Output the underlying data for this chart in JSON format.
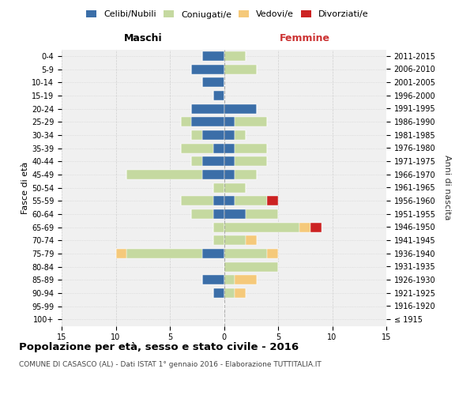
{
  "age_groups": [
    "100+",
    "95-99",
    "90-94",
    "85-89",
    "80-84",
    "75-79",
    "70-74",
    "65-69",
    "60-64",
    "55-59",
    "50-54",
    "45-49",
    "40-44",
    "35-39",
    "30-34",
    "25-29",
    "20-24",
    "15-19",
    "10-14",
    "5-9",
    "0-4"
  ],
  "birth_years": [
    "≤ 1915",
    "1916-1920",
    "1921-1925",
    "1926-1930",
    "1931-1935",
    "1936-1940",
    "1941-1945",
    "1946-1950",
    "1951-1955",
    "1956-1960",
    "1961-1965",
    "1966-1970",
    "1971-1975",
    "1976-1980",
    "1981-1985",
    "1986-1990",
    "1991-1995",
    "1996-2000",
    "2001-2005",
    "2006-2010",
    "2011-2015"
  ],
  "maschi_celibi": [
    0,
    0,
    1,
    2,
    0,
    2,
    0,
    0,
    1,
    1,
    0,
    2,
    2,
    1,
    2,
    3,
    3,
    1,
    2,
    3,
    2
  ],
  "maschi_coniugati": [
    0,
    0,
    0,
    0,
    0,
    7,
    1,
    1,
    2,
    3,
    1,
    7,
    1,
    3,
    1,
    1,
    0,
    0,
    0,
    0,
    0
  ],
  "maschi_vedovi": [
    0,
    0,
    0,
    0,
    0,
    1,
    0,
    0,
    0,
    0,
    0,
    0,
    0,
    0,
    0,
    0,
    0,
    0,
    0,
    0,
    0
  ],
  "maschi_divorziati": [
    0,
    0,
    0,
    0,
    0,
    0,
    0,
    0,
    0,
    0,
    0,
    0,
    0,
    0,
    0,
    0,
    0,
    0,
    0,
    0,
    0
  ],
  "femmine_celibi": [
    0,
    0,
    0,
    0,
    0,
    0,
    0,
    0,
    2,
    1,
    0,
    1,
    1,
    1,
    1,
    1,
    3,
    0,
    0,
    0,
    0
  ],
  "femmine_coniugati": [
    0,
    0,
    1,
    1,
    5,
    4,
    2,
    7,
    3,
    3,
    2,
    2,
    3,
    3,
    1,
    3,
    0,
    0,
    0,
    3,
    2
  ],
  "femmine_vedovi": [
    0,
    0,
    1,
    2,
    0,
    1,
    1,
    1,
    0,
    0,
    0,
    0,
    0,
    0,
    0,
    0,
    0,
    0,
    0,
    0,
    0
  ],
  "femmine_divorziati": [
    0,
    0,
    0,
    0,
    0,
    0,
    0,
    1,
    0,
    1,
    0,
    0,
    0,
    0,
    0,
    0,
    0,
    0,
    0,
    0,
    0
  ],
  "colors": {
    "celibi": "#3b6ea8",
    "coniugati": "#c5d9a0",
    "vedovi": "#f5c97a",
    "divorziati": "#cc2222"
  },
  "title": "Popolazione per età, sesso e stato civile - 2016",
  "subtitle": "COMUNE DI CASASCO (AL) - Dati ISTAT 1° gennaio 2016 - Elaborazione TUTTITALIA.IT",
  "xlabel_left": "Maschi",
  "xlabel_right": "Femmine",
  "ylabel_left": "Fasce di età",
  "ylabel_right": "Anni di nascita",
  "legend_labels": [
    "Celibi/Nubili",
    "Coniugati/e",
    "Vedovi/e",
    "Divorziati/e"
  ],
  "xlim": 15,
  "bg_color": "#f0f0f0",
  "grid_color": "#cccccc"
}
